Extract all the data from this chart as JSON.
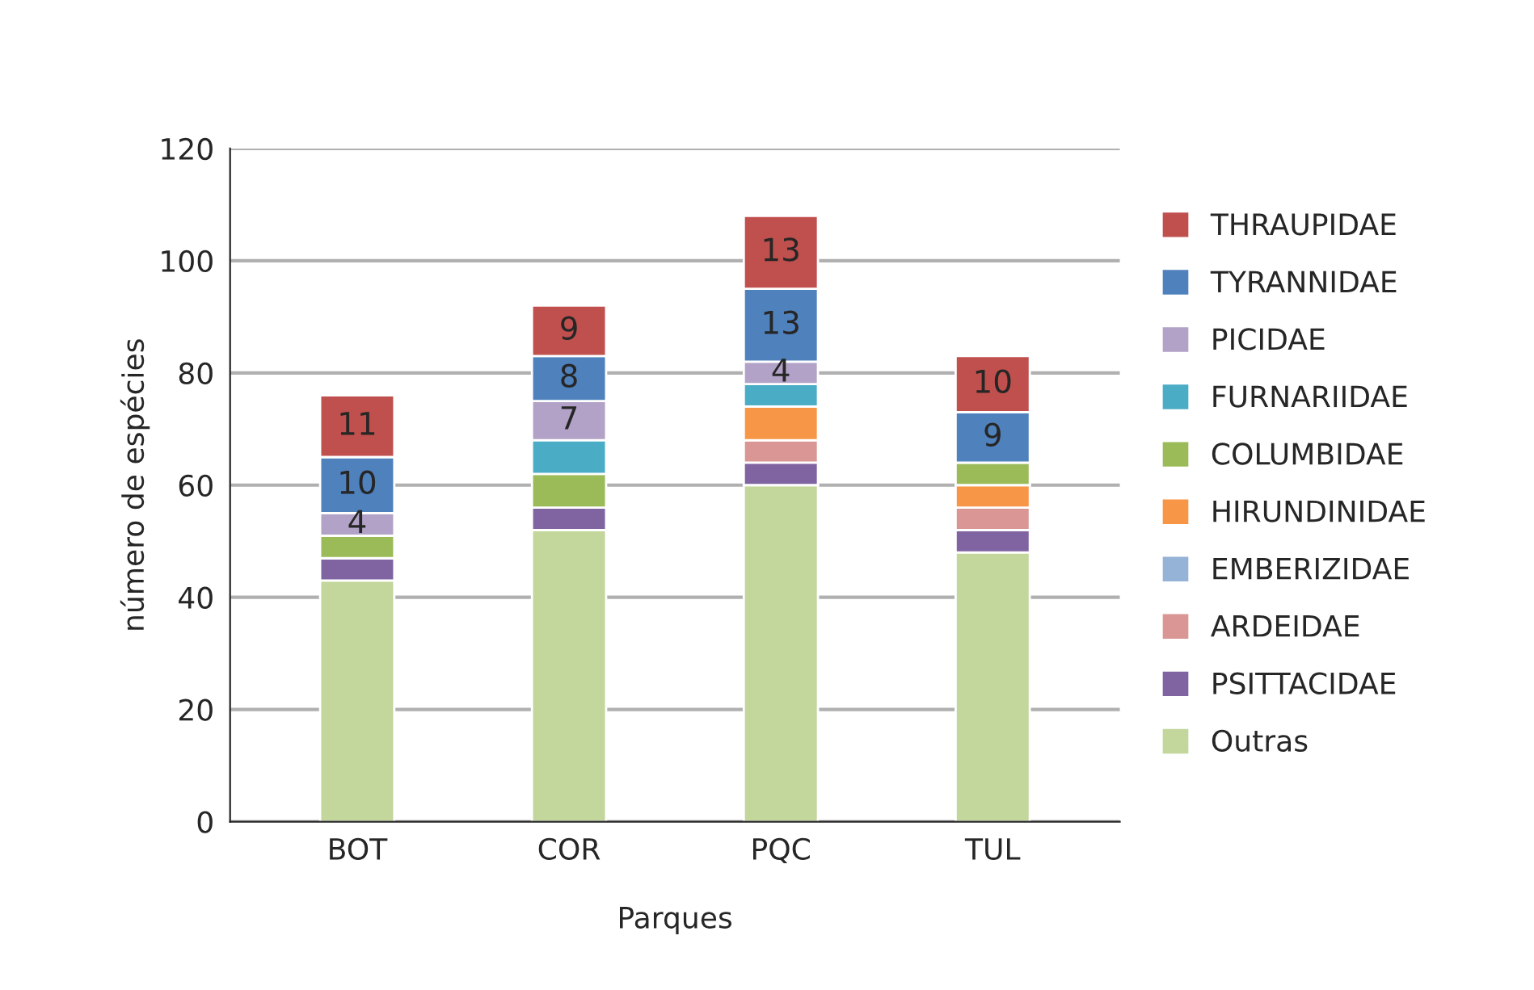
{
  "chart_data": {
    "type": "bar",
    "stacked": true,
    "xlabel": "Parques",
    "ylabel": "número de espécies",
    "categories": [
      "BOT",
      "COR",
      "PQC",
      "TUL"
    ],
    "series": [
      {
        "name": "Outras",
        "color": "#c3d69b",
        "values": [
          43,
          52,
          60,
          48
        ]
      },
      {
        "name": "PSITTACIDAE",
        "color": "#8064a2",
        "values": [
          4,
          4,
          4,
          4
        ]
      },
      {
        "name": "ARDEIDAE",
        "color": "#d99694",
        "values": [
          0,
          0,
          4,
          4
        ]
      },
      {
        "name": "EMBERIZIDAE",
        "color": "#95b3d7",
        "values": [
          0,
          0,
          0,
          0
        ]
      },
      {
        "name": "HIRUNDINIDAE",
        "color": "#f79646",
        "values": [
          0,
          0,
          6,
          4
        ]
      },
      {
        "name": "COLUMBIDAE",
        "color": "#9bbb59",
        "values": [
          4,
          6,
          0,
          4
        ]
      },
      {
        "name": "FURNARIIDAE",
        "color": "#4bacc6",
        "values": [
          0,
          6,
          4,
          0
        ]
      },
      {
        "name": "PICIDAE",
        "color": "#b3a2c7",
        "values": [
          4,
          7,
          4,
          0
        ],
        "value_labels": [
          "4",
          "7",
          "4",
          null
        ]
      },
      {
        "name": "TYRANNIDAE",
        "color": "#4f81bd",
        "values": [
          10,
          8,
          13,
          9
        ],
        "value_labels": [
          "10",
          "8",
          "13",
          "9"
        ]
      },
      {
        "name": "THRAUPIDAE",
        "color": "#c0504d",
        "values": [
          11,
          9,
          13,
          10
        ],
        "value_labels": [
          "11",
          "9",
          "13",
          "10"
        ]
      }
    ],
    "ylim": [
      0,
      120
    ],
    "yticks": [
      0,
      20,
      40,
      60,
      80,
      100,
      120
    ],
    "grid": "y",
    "legend": "right"
  }
}
